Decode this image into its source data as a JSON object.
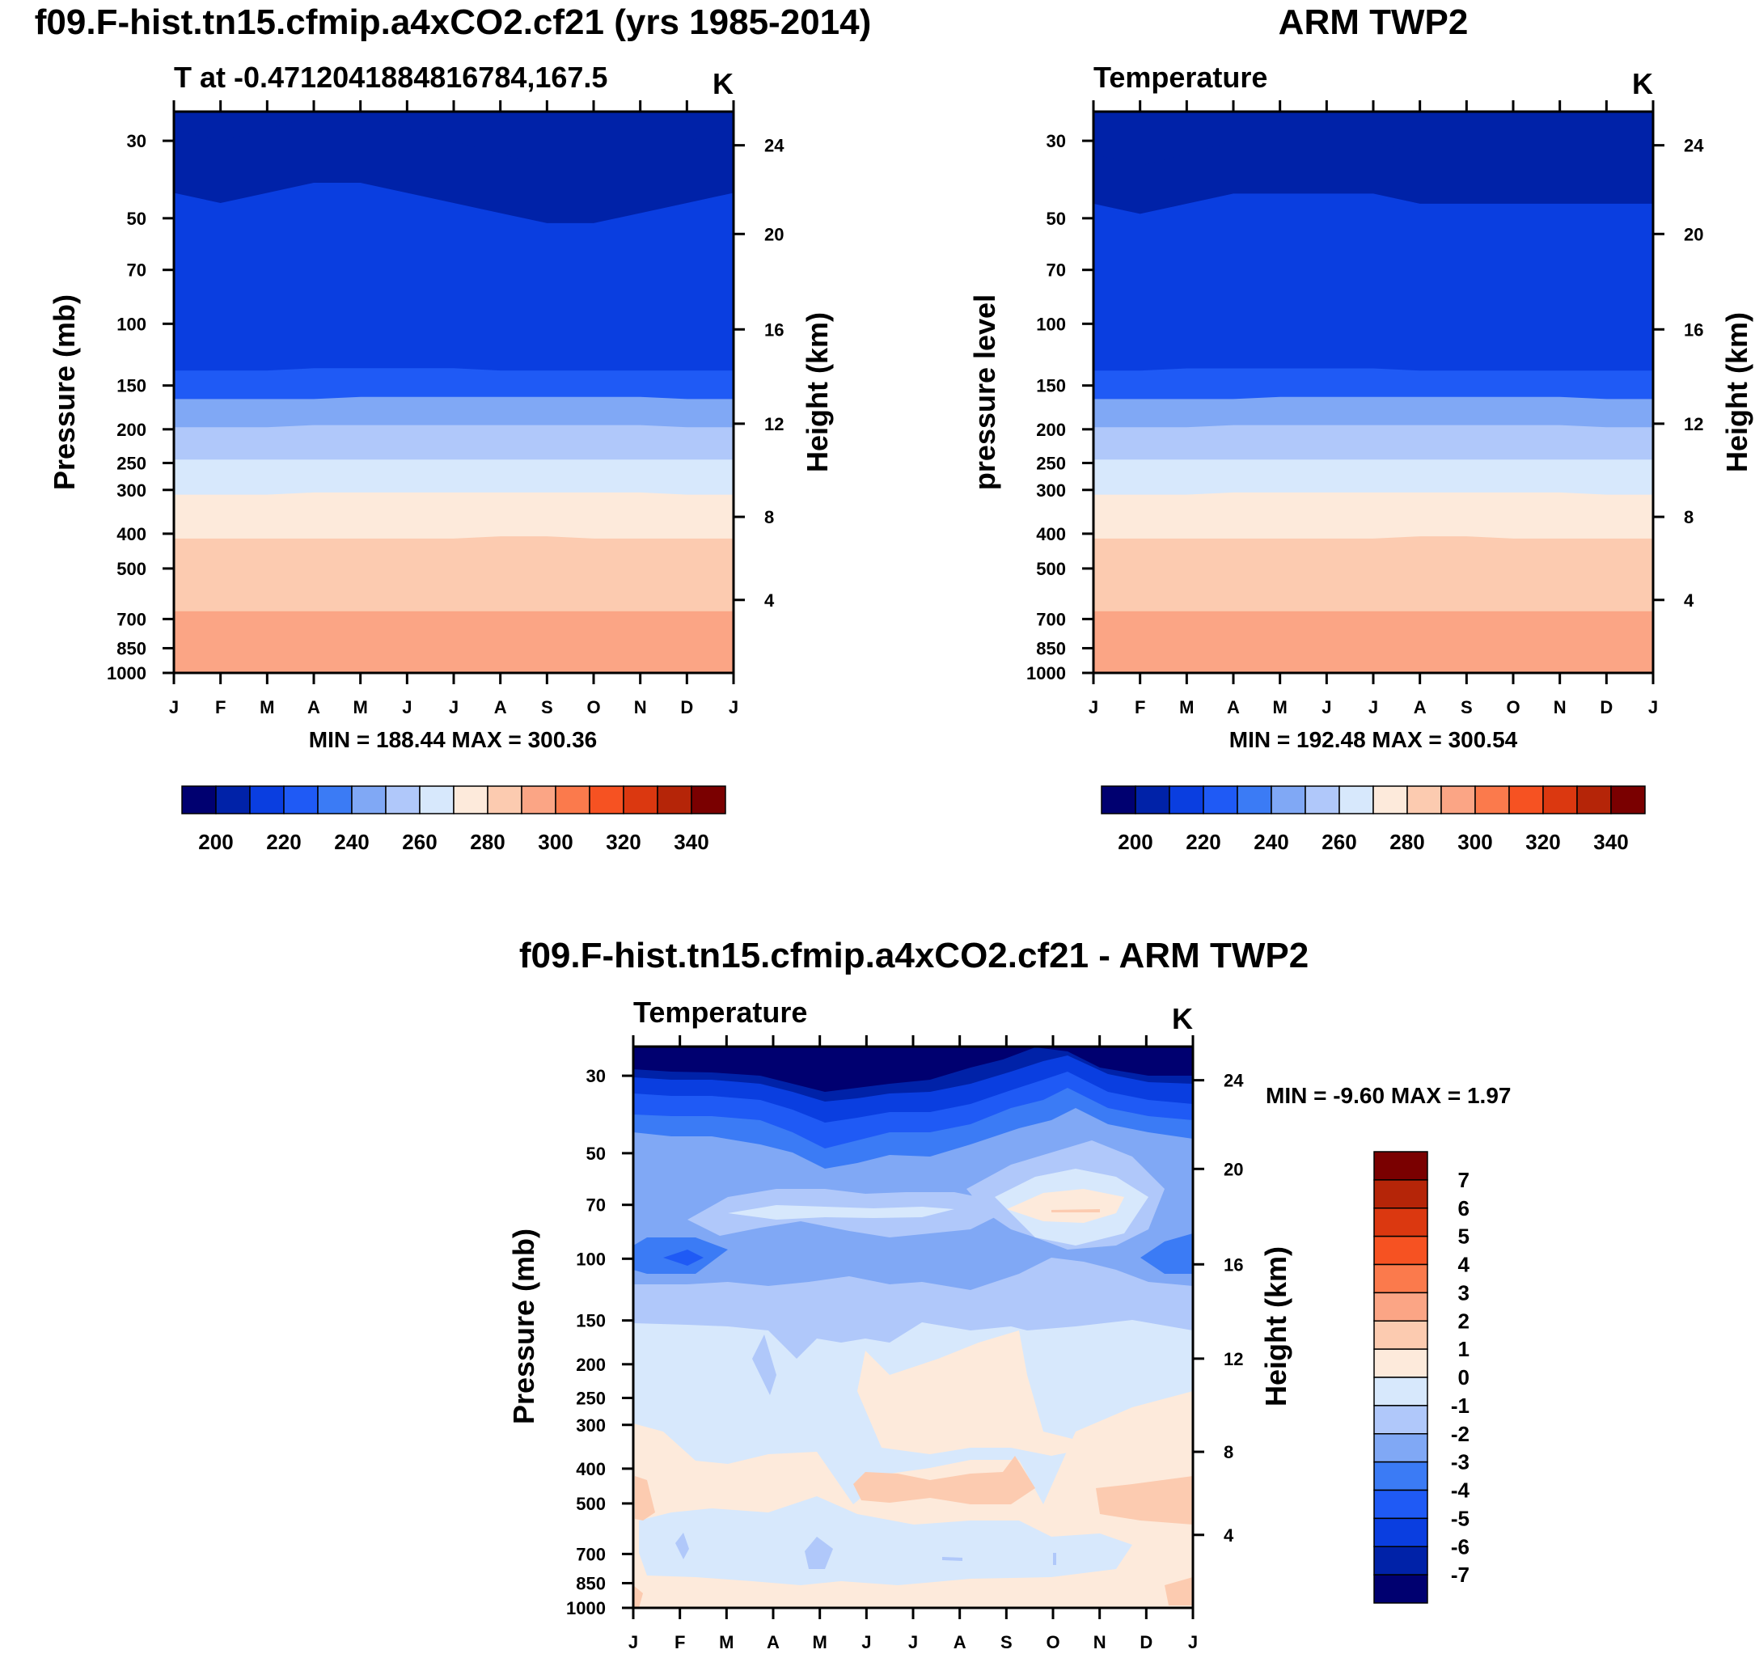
{
  "chart_data": [
    {
      "type": "contour",
      "main_title": "f09.F-hist.tn15.cfmip.a4xCO2.cf21 (yrs 1985-2014)",
      "left_title": "T at -0.4712041884816784,167.5",
      "units": "K",
      "ylabel": "Pressure (mb)",
      "ylabel_right": "Height (km)",
      "x_labels": [
        "J",
        "F",
        "M",
        "A",
        "M",
        "J",
        "J",
        "A",
        "S",
        "O",
        "N",
        "D",
        "J"
      ],
      "pressure_ticks": [
        "30",
        "50",
        "70",
        "100",
        "150",
        "200",
        "250",
        "300",
        "400",
        "500",
        "700",
        "850",
        "1000"
      ],
      "height_ticks": [
        "24",
        "20",
        "16",
        "12",
        "8",
        "4"
      ],
      "minmax": "MIN = 188.44 MAX = 300.36",
      "colorbar_labels": [
        "200",
        "220",
        "240",
        "260",
        "280",
        "300",
        "320",
        "340"
      ],
      "colors": [
        "#000070",
        "#0022a8",
        "#0a3ee0",
        "#1f5af5",
        "#3b7bf5",
        "#80a8f5",
        "#b0c8fa",
        "#d7e8fc",
        "#fdeadb",
        "#fccbb0",
        "#fba585",
        "#fb7a4c",
        "#f65222",
        "#db3810",
        "#b52508",
        "#7a0000"
      ],
      "level_range": [
        190,
        350
      ],
      "level_step": 10,
      "lines": [
        [
          208,
          209,
          208,
          207,
          207,
          208,
          209,
          210,
          211,
          211,
          210,
          209,
          208
        ],
        [
          218,
          218,
          218,
          217,
          217,
          217,
          217,
          218,
          218,
          218,
          218,
          218,
          218
        ],
        [
          230,
          230,
          230,
          230,
          229,
          229,
          229,
          229,
          229,
          229,
          229,
          230,
          230
        ],
        [
          244,
          244,
          244,
          243,
          243,
          243,
          243,
          243,
          243,
          243,
          243,
          244,
          244
        ],
        [
          253,
          253,
          253,
          253,
          253,
          253,
          253,
          253,
          253,
          253,
          253,
          253,
          253
        ],
        [
          262,
          262,
          262,
          261,
          261,
          261,
          261,
          261,
          261,
          261,
          261,
          262,
          262
        ],
        [
          271,
          271,
          271,
          271,
          271,
          271,
          271,
          270,
          270,
          271,
          271,
          271,
          271
        ],
        [
          284,
          284,
          284,
          284,
          284,
          284,
          284,
          284,
          284,
          284,
          284,
          284,
          284
        ],
        [
          289,
          289,
          289,
          289,
          289,
          289,
          289,
          289,
          289,
          289,
          289,
          289,
          289
        ],
        [
          294,
          294,
          294,
          294,
          294,
          294,
          294,
          294,
          294,
          294,
          294,
          294,
          294
        ]
      ]
    },
    {
      "type": "contour",
      "main_title": "ARM TWP2",
      "left_title": "Temperature",
      "units": "K",
      "ylabel": "pressure level",
      "ylabel_right": "Height (km)",
      "x_labels": [
        "J",
        "F",
        "M",
        "A",
        "M",
        "J",
        "J",
        "A",
        "S",
        "O",
        "N",
        "D",
        "J"
      ],
      "pressure_ticks": [
        "30",
        "50",
        "70",
        "100",
        "150",
        "200",
        "250",
        "300",
        "400",
        "500",
        "700",
        "850",
        "1000"
      ],
      "height_ticks": [
        "24",
        "20",
        "16",
        "12",
        "8",
        "4"
      ],
      "minmax": "MIN = 192.48 MAX = 300.54",
      "colorbar_labels": [
        "200",
        "220",
        "240",
        "260",
        "280",
        "300",
        "320",
        "340"
      ],
      "colors": [
        "#000070",
        "#0022a8",
        "#0a3ee0",
        "#1f5af5",
        "#3b7bf5",
        "#80a8f5",
        "#b0c8fa",
        "#d7e8fc",
        "#fdeadb",
        "#fccbb0",
        "#fba585",
        "#fb7a4c",
        "#f65222",
        "#db3810",
        "#b52508",
        "#7a0000"
      ],
      "level_range": [
        190,
        350
      ],
      "level_step": 10,
      "lines": [
        [
          210,
          211,
          210,
          209,
          209,
          209,
          209,
          210,
          210,
          210,
          210,
          210,
          210
        ],
        [
          218,
          218,
          217,
          217,
          217,
          217,
          217,
          218,
          218,
          218,
          218,
          218,
          218
        ],
        [
          230,
          230,
          230,
          230,
          229,
          229,
          229,
          229,
          229,
          229,
          229,
          230,
          230
        ],
        [
          244,
          244,
          244,
          243,
          243,
          243,
          243,
          243,
          243,
          243,
          243,
          244,
          244
        ],
        [
          253,
          253,
          253,
          253,
          253,
          253,
          253,
          253,
          253,
          253,
          253,
          253,
          253
        ],
        [
          262,
          262,
          262,
          261,
          261,
          261,
          261,
          261,
          261,
          261,
          261,
          262,
          262
        ],
        [
          271,
          271,
          271,
          271,
          271,
          271,
          271,
          270,
          270,
          271,
          271,
          271,
          271
        ],
        [
          284,
          284,
          284,
          284,
          284,
          284,
          284,
          284,
          284,
          284,
          284,
          284,
          284
        ],
        [
          289,
          289,
          289,
          289,
          289,
          289,
          289,
          289,
          289,
          289,
          289,
          289,
          289
        ],
        [
          294,
          294,
          294,
          294,
          294,
          294,
          294,
          294,
          294,
          294,
          294,
          294,
          294
        ]
      ]
    },
    {
      "type": "contour",
      "main_title": "f09.F-hist.tn15.cfmip.a4xCO2.cf21 - ARM TWP2",
      "left_title": "Temperature",
      "units": "K",
      "ylabel": "Pressure (mb)",
      "ylabel_right": "Height (km)",
      "x_labels": [
        "J",
        "F",
        "M",
        "A",
        "M",
        "J",
        "J",
        "A",
        "S",
        "O",
        "N",
        "D",
        "J"
      ],
      "pressure_ticks": [
        "30",
        "50",
        "70",
        "100",
        "150",
        "200",
        "250",
        "300",
        "400",
        "500",
        "700",
        "850",
        "1000"
      ],
      "height_ticks": [
        "24",
        "20",
        "16",
        "12",
        "8",
        "4"
      ],
      "minmax": "MIN =  -9.60 MAX =   1.97",
      "colorbar_labels": [
        "7",
        "6",
        "5",
        "4",
        "3",
        "2",
        "1",
        "0",
        "-1",
        "-2",
        "-3",
        "-4",
        "-5",
        "-6",
        "-7"
      ],
      "colors": [
        "#7a0000",
        "#b52508",
        "#db3810",
        "#f65222",
        "#fb7a4c",
        "#fba585",
        "#fccbb0",
        "#fdeadb",
        "#d7e8fc",
        "#b0c8fa",
        "#80a8f5",
        "#3b7bf5",
        "#1f5af5",
        "#0a3ee0",
        "#0022a8",
        "#000070"
      ],
      "level_range": [
        -8,
        8
      ],
      "level_step": 1
    }
  ]
}
